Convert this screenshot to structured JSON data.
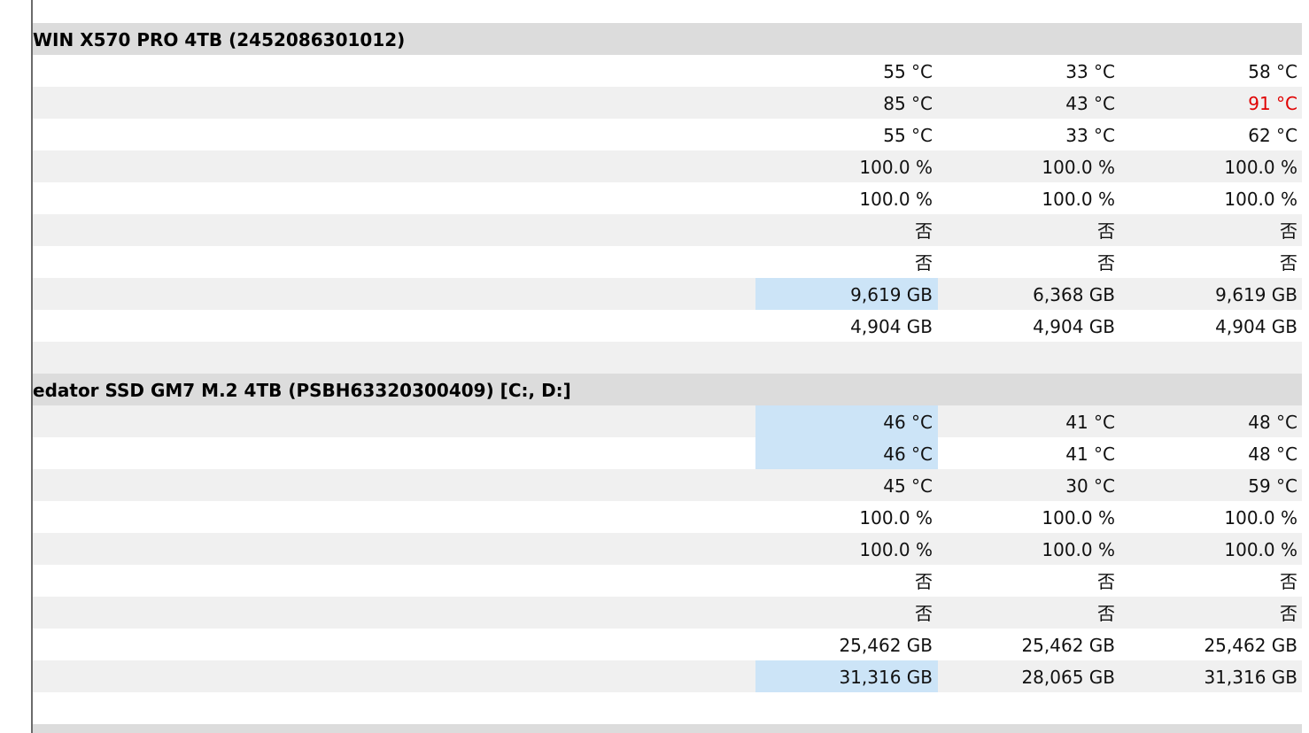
{
  "sections": [
    {
      "title": "WIN X570 PRO 4TB (2452086301012)",
      "rows": [
        [
          "55 °C",
          "33 °C",
          "58 °C"
        ],
        [
          "85 °C",
          "43 °C",
          "91 °C"
        ],
        [
          "55 °C",
          "33 °C",
          "62 °C"
        ],
        [
          "100.0 %",
          "100.0 %",
          "100.0 %"
        ],
        [
          "100.0 %",
          "100.0 %",
          "100.0 %"
        ],
        [
          "否",
          "否",
          "否"
        ],
        [
          "否",
          "否",
          "否"
        ],
        [
          "9,619 GB",
          "6,368 GB",
          "9,619 GB"
        ],
        [
          "4,904 GB",
          "4,904 GB",
          "4,904 GB"
        ]
      ],
      "highlighted": [
        [
          7,
          0
        ]
      ],
      "warning": [
        [
          1,
          2
        ]
      ]
    },
    {
      "title": "edator SSD GM7 M.2 4TB (PSBH63320300409) [C:, D:]",
      "rows": [
        [
          "46 °C",
          "41 °C",
          "48 °C"
        ],
        [
          "46 °C",
          "41 °C",
          "48 °C"
        ],
        [
          "45 °C",
          "30 °C",
          "59 °C"
        ],
        [
          "100.0 %",
          "100.0 %",
          "100.0 %"
        ],
        [
          "100.0 %",
          "100.0 %",
          "100.0 %"
        ],
        [
          "否",
          "否",
          "否"
        ],
        [
          "否",
          "否",
          "否"
        ],
        [
          "25,462 GB",
          "25,462 GB",
          "25,462 GB"
        ],
        [
          "31,316 GB",
          "28,065 GB",
          "31,316 GB"
        ]
      ],
      "highlighted": [
        [
          0,
          0
        ],
        [
          1,
          0
        ],
        [
          8,
          0
        ]
      ],
      "warning": []
    }
  ]
}
